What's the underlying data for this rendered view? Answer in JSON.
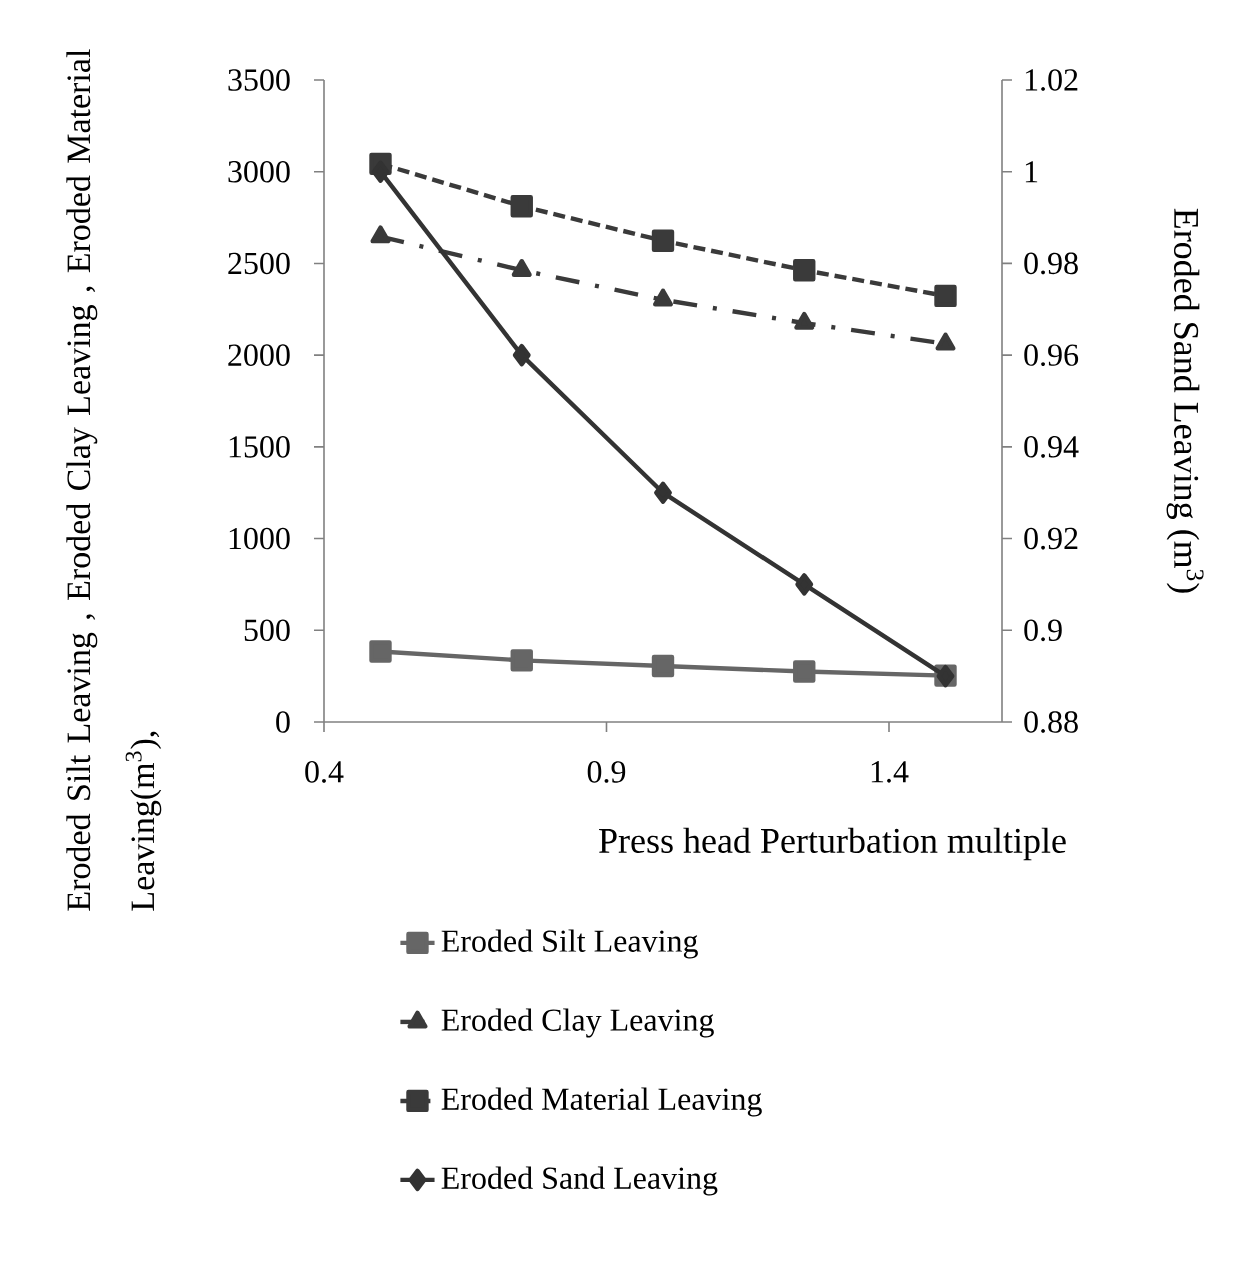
{
  "chart_data": {
    "type": "line",
    "xlabel": "Press head Perturbation multiple",
    "ylabel": "Eroded Silt Leaving , Eroded Clay Leaving , Eroded Material Leaving(m$^{3}$),",
    "y2label": "Eroded Sand Leaving (m$^{3}$)",
    "x": [
      0.5,
      0.75,
      1.0,
      1.25,
      1.5
    ],
    "xlim": [
      0.4,
      1.6
    ],
    "xticks": [
      0.4,
      0.9,
      1.4
    ],
    "ylim": [
      0,
      3500
    ],
    "yticks": [
      0,
      500,
      1000,
      1500,
      2000,
      2500,
      3000,
      3500
    ],
    "y2lim": [
      0.88,
      1.02
    ],
    "y2ticks": [
      0.88,
      0.9,
      0.92,
      0.94,
      0.96,
      0.98,
      1,
      1.02
    ],
    "legend": "bottom",
    "grid": false,
    "series": [
      {
        "name": "Eroded Silt Leaving",
        "color": "#666666",
        "marker": "square",
        "line_style": "solid",
        "values": [
          384,
          336,
          305,
          275,
          253
        ]
      },
      {
        "name": "Eroded Clay Leaving",
        "color": "#3a3a3a",
        "marker": "triangle",
        "line_style": "dashdot",
        "values": [
          2646,
          2463,
          2302,
          2175,
          2062
        ]
      },
      {
        "name": "Eroded Material Leaving",
        "color": "#3a3a3a",
        "marker": "square",
        "line_style": "dashed",
        "values": [
          3043,
          2812,
          2624,
          2463,
          2323
        ]
      },
      {
        "name": "Eroded Sand Leaving",
        "color": "#333333",
        "marker": "diamond",
        "line_style": "solid",
        "axis": "y2",
        "values": [
          1.0,
          0.96,
          0.93,
          0.91,
          0.89
        ]
      }
    ]
  }
}
